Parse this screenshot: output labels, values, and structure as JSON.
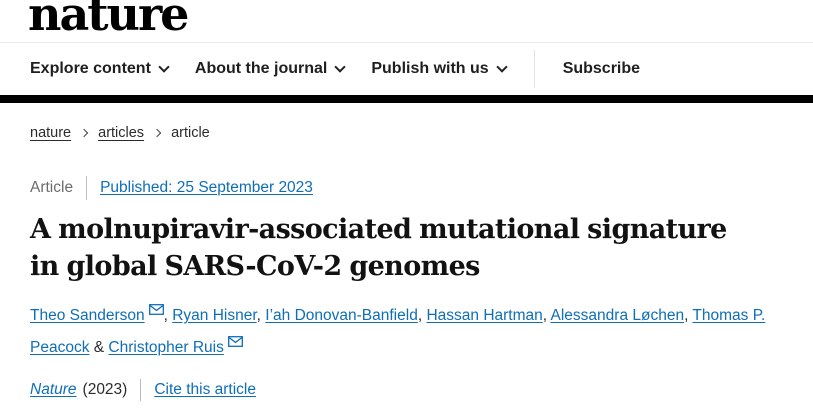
{
  "header": {
    "logo_text": "nature",
    "nav_items": [
      {
        "label": "Explore content",
        "dropdown": true
      },
      {
        "label": "About the journal",
        "dropdown": true
      },
      {
        "label": "Publish with us",
        "dropdown": true
      },
      {
        "label": "Subscribe",
        "dropdown": false,
        "divider_before": true
      }
    ]
  },
  "breadcrumb": [
    {
      "label": "nature",
      "link": true
    },
    {
      "label": "articles",
      "link": true
    },
    {
      "label": "article",
      "link": false
    }
  ],
  "article": {
    "type_label": "Article",
    "published": "Published: 25 September 2023",
    "title": "A molnupiravir-associated mutational signature in global SARS-CoV-2 genomes",
    "authors": [
      {
        "name": "Theo Sanderson",
        "email_icon": true
      },
      {
        "name": "Ryan Hisner"
      },
      {
        "name": "I’ah Donovan-Banfield"
      },
      {
        "name": "Hassan Hartman"
      },
      {
        "name": "Alessandra Løchen"
      },
      {
        "name": "Thomas P. Peacock"
      },
      {
        "name": "Christopher Ruis",
        "email_icon": true
      }
    ],
    "authors_conjunction": "&"
  },
  "citation": {
    "journal": "Nature",
    "year": "(2023)",
    "cite_link": "Cite this article"
  },
  "colors": {
    "link_blue": "#0e6eb8",
    "header_bar": "#000000",
    "muted_gray": "#6c6c6c"
  }
}
